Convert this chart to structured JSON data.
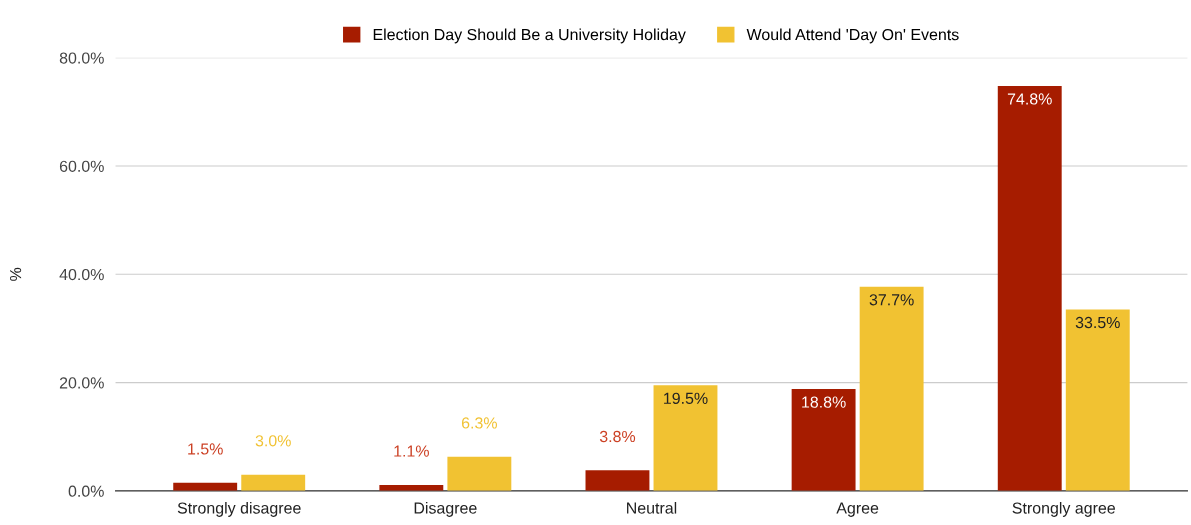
{
  "chart_data": {
    "type": "bar",
    "ylabel": "%",
    "categories": [
      "Strongly disagree",
      "Disagree",
      "Neutral",
      "Agree",
      "Strongly agree"
    ],
    "series": [
      {
        "name": "Election Day Should Be a University Holiday",
        "color": "#a61c00",
        "values": [
          1.5,
          1.1,
          3.8,
          18.8,
          74.8
        ],
        "value_labels": [
          "1.5%",
          "1.1%",
          "3.8%",
          "18.8%",
          "74.8%"
        ]
      },
      {
        "name": "Would Attend 'Day On' Events",
        "color": "#f1c232",
        "values": [
          3.0,
          6.3,
          19.5,
          37.7,
          33.5
        ],
        "value_labels": [
          "3.0%",
          "6.3%",
          "19.5%",
          "37.7%",
          "33.5%"
        ]
      }
    ],
    "ylim": [
      0,
      80
    ],
    "yticks": [
      {
        "value": 0,
        "label": "0.0%"
      },
      {
        "value": 20,
        "label": "20.0%"
      },
      {
        "value": 40,
        "label": "40.0%"
      },
      {
        "value": 60,
        "label": "60.0%"
      },
      {
        "value": 80,
        "label": "80.0%"
      }
    ],
    "grid": "y",
    "legend": "top"
  }
}
